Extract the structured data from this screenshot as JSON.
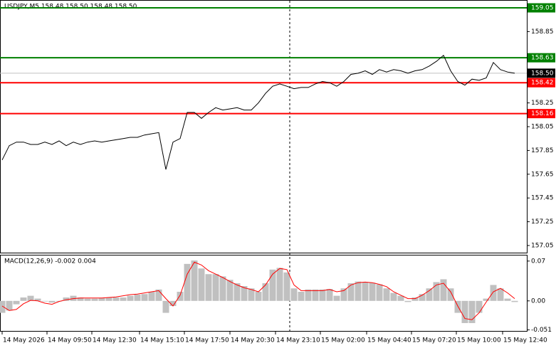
{
  "chart_data": [
    {
      "type": "line",
      "title": "USDJPY,M5  158.48 158.50 158.48 158.50",
      "color": "#000000",
      "values": [
        157.77,
        157.89,
        157.92,
        157.92,
        157.9,
        157.9,
        157.92,
        157.9,
        157.93,
        157.89,
        157.92,
        157.9,
        157.92,
        157.93,
        157.92,
        157.93,
        157.94,
        157.95,
        157.96,
        157.96,
        157.98,
        157.99,
        158.0,
        157.69,
        157.92,
        157.95,
        158.17,
        158.17,
        158.12,
        158.17,
        158.21,
        158.19,
        158.2,
        158.21,
        158.19,
        158.19,
        158.25,
        158.33,
        158.39,
        158.41,
        158.39,
        158.37,
        158.38,
        158.38,
        158.41,
        158.43,
        158.42,
        158.39,
        158.43,
        158.49,
        158.5,
        158.52,
        158.49,
        158.53,
        158.51,
        158.53,
        158.52,
        158.5,
        158.52,
        158.53,
        158.56,
        158.6,
        158.65,
        158.52,
        158.43,
        158.4,
        158.45,
        158.44,
        158.46,
        158.59,
        158.53,
        158.51,
        158.5
      ],
      "xlim": [
        -0.3,
        73.7
      ],
      "ylim": [
        156.99,
        159.11
      ],
      "grid": false,
      "yticks": [
        158.85,
        158.25,
        158.05,
        157.85,
        157.65,
        157.45,
        157.25,
        157.05
      ],
      "xticks": [
        {
          "value": 0,
          "label": "14 May 2026"
        },
        {
          "value": 6.3,
          "label": "14 May 09:50"
        },
        {
          "value": 12.6,
          "label": "14 May 12:30"
        },
        {
          "value": 19.3,
          "label": "14 May 15:10"
        },
        {
          "value": 25.6,
          "label": "14 May 17:50"
        },
        {
          "value": 32,
          "label": "14 May 20:30"
        },
        {
          "value": 38.4,
          "label": "14 May 23:10"
        },
        {
          "value": 44.7,
          "label": "15 May 02:00"
        },
        {
          "value": 51.2,
          "label": "15 May 04:40"
        },
        {
          "value": 57.5,
          "label": "15 May 07:20"
        },
        {
          "value": 63.8,
          "label": "15 May 10:00"
        },
        {
          "value": 70.3,
          "label": "15 May 12:40"
        }
      ],
      "levels": [
        {
          "value": 159.05,
          "color": "#008000"
        },
        {
          "value": 158.63,
          "color": "#008000"
        },
        {
          "value": 158.42,
          "color": "#ff0000"
        },
        {
          "value": 158.16,
          "color": "#ff0000"
        },
        {
          "value": 158.5,
          "label": "158.50",
          "color": "#000000",
          "line_color": "#c0c0c0"
        }
      ]
    },
    {
      "type": "bar",
      "title": "MACD(12,26,9) -0.002 0.004",
      "color": "#c0c0c0",
      "values": [
        -0.021,
        -0.017,
        -0.006,
        0.006,
        0.009,
        0.004,
        -0.001,
        -0.003,
        -0.001,
        0.006,
        0.009,
        0.006,
        0.004,
        0.004,
        0.005,
        0.006,
        0.006,
        0.006,
        0.009,
        0.011,
        0.012,
        0.016,
        0.02,
        -0.021,
        -0.009,
        0.016,
        0.065,
        0.071,
        0.057,
        0.047,
        0.047,
        0.043,
        0.037,
        0.031,
        0.026,
        0.022,
        0.016,
        0.031,
        0.055,
        0.058,
        0.05,
        0.022,
        0.016,
        0.02,
        0.02,
        0.02,
        0.021,
        0.009,
        0.022,
        0.031,
        0.034,
        0.033,
        0.032,
        0.029,
        0.022,
        0.014,
        0.009,
        -0.002,
        0.006,
        0.012,
        0.022,
        0.033,
        0.038,
        0.022,
        -0.021,
        -0.039,
        -0.039,
        -0.021,
        0.004,
        0.028,
        0.022,
        0.004,
        -0.002
      ],
      "signal_values": [
        -0.009,
        -0.017,
        -0.015,
        -0.005,
        0.001,
        0,
        -0.004,
        -0.006,
        -0.001,
        0.002,
        0.004,
        0.005,
        0.005,
        0.005,
        0.005,
        0.006,
        0.007,
        0.009,
        0.011,
        0.012,
        0.014,
        0.016,
        0.018,
        0.004,
        -0.009,
        0.01,
        0.047,
        0.068,
        0.063,
        0.053,
        0.047,
        0.041,
        0.034,
        0.028,
        0.023,
        0.02,
        0.016,
        0.028,
        0.047,
        0.057,
        0.055,
        0.028,
        0.018,
        0.018,
        0.018,
        0.018,
        0.02,
        0.016,
        0.018,
        0.028,
        0.032,
        0.033,
        0.032,
        0.029,
        0.025,
        0.016,
        0.01,
        0.004,
        0.004,
        0.01,
        0.018,
        0.028,
        0.031,
        0.016,
        -0.009,
        -0.031,
        -0.033,
        -0.021,
        -0.002,
        0.016,
        0.022,
        0.014,
        0.004
      ],
      "signal_color": "#ff0000",
      "xlim": [
        -0.3,
        73.7
      ],
      "ylim": [
        -0.0528,
        0.0798
      ],
      "yticks": [
        0.07,
        {
          "value": 0,
          "label": "0.00"
        },
        -0.051
      ]
    }
  ]
}
